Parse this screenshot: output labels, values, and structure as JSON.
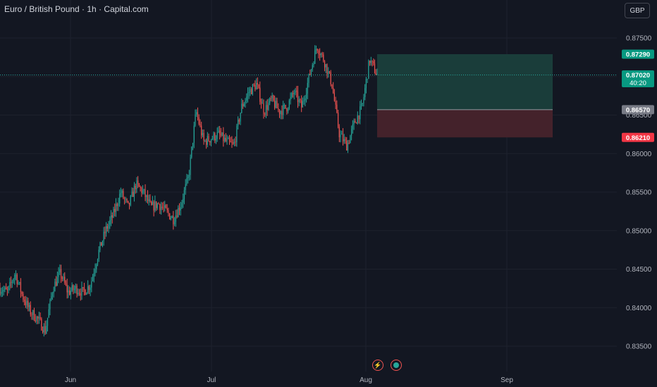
{
  "header": {
    "title": "Euro / British Pound · 1h · Capital.com",
    "currency_label": "GBP"
  },
  "colors": {
    "background": "#131722",
    "grid": "#1e222d",
    "up": "#26a69a",
    "down": "#ef5350",
    "target_zone": "#1a3d3a",
    "stop_zone": "#44222b",
    "current_price_line": "#26a69a",
    "entry_label": "#787b86"
  },
  "chart_data": {
    "type": "candlestick",
    "title": "Euro / British Pound · 1h · Capital.com",
    "ylim": [
      0.8325,
      0.8775
    ],
    "ytick_labels": [
      "0.83500",
      "0.84000",
      "0.84500",
      "0.85000",
      "0.85500",
      "0.86000",
      "0.86500",
      "0.87000",
      "0.87500"
    ],
    "xtick_labels": [
      "Jun",
      "Jul",
      "Aug",
      "Sep"
    ],
    "grid": true,
    "price_path": [
      {
        "t": "May 26",
        "p": 0.8425
      },
      {
        "t": "May 27",
        "p": 0.842
      },
      {
        "t": "May 28",
        "p": 0.8445
      },
      {
        "t": "May 29",
        "p": 0.8415
      },
      {
        "t": "May 30",
        "p": 0.8395
      },
      {
        "t": "Jun 2",
        "p": 0.8385
      },
      {
        "t": "Jun 3",
        "p": 0.837
      },
      {
        "t": "Jun 4",
        "p": 0.8425
      },
      {
        "t": "Jun 5",
        "p": 0.8445
      },
      {
        "t": "Jun 6",
        "p": 0.842
      },
      {
        "t": "Jun 9",
        "p": 0.8425
      },
      {
        "t": "Jun 10",
        "p": 0.842
      },
      {
        "t": "Jun 11",
        "p": 0.843
      },
      {
        "t": "Jun 12",
        "p": 0.847
      },
      {
        "t": "Jun 13",
        "p": 0.85
      },
      {
        "t": "Jun 16",
        "p": 0.852
      },
      {
        "t": "Jun 17",
        "p": 0.855
      },
      {
        "t": "Jun 18",
        "p": 0.853
      },
      {
        "t": "Jun 19",
        "p": 0.856
      },
      {
        "t": "Jun 20",
        "p": 0.855
      },
      {
        "t": "Jun 23",
        "p": 0.853
      },
      {
        "t": "Jun 24",
        "p": 0.8535
      },
      {
        "t": "Jun 25",
        "p": 0.8525
      },
      {
        "t": "Jun 26",
        "p": 0.8515
      },
      {
        "t": "Jun 27",
        "p": 0.8535
      },
      {
        "t": "Jun 30",
        "p": 0.857
      },
      {
        "t": "Jul 1",
        "p": 0.8655
      },
      {
        "t": "Jul 2",
        "p": 0.8615
      },
      {
        "t": "Jul 3",
        "p": 0.862
      },
      {
        "t": "Jul 4",
        "p": 0.8625
      },
      {
        "t": "Jul 7",
        "p": 0.8615
      },
      {
        "t": "Jul 8",
        "p": 0.861
      },
      {
        "t": "Jul 9",
        "p": 0.866
      },
      {
        "t": "Jul 10",
        "p": 0.868
      },
      {
        "t": "Jul 11",
        "p": 0.869
      },
      {
        "t": "Jul 14",
        "p": 0.8655
      },
      {
        "t": "Jul 15",
        "p": 0.867
      },
      {
        "t": "Jul 16",
        "p": 0.8655
      },
      {
        "t": "Jul 17",
        "p": 0.866
      },
      {
        "t": "Jul 18",
        "p": 0.868
      },
      {
        "t": "Jul 21",
        "p": 0.866
      },
      {
        "t": "Jul 22",
        "p": 0.87
      },
      {
        "t": "Jul 23",
        "p": 0.874
      },
      {
        "t": "Jul 24",
        "p": 0.872
      },
      {
        "t": "Jul 25",
        "p": 0.869
      },
      {
        "t": "Jul 28",
        "p": 0.8625
      },
      {
        "t": "Jul 29",
        "p": 0.861
      },
      {
        "t": "Jul 30",
        "p": 0.864
      },
      {
        "t": "Jul 31",
        "p": 0.866
      },
      {
        "t": "Aug 1",
        "p": 0.8722
      },
      {
        "t": "Aug 1 end",
        "p": 0.8702
      }
    ],
    "position": {
      "type": "long",
      "entry": 0.8657,
      "target": 0.8729,
      "stop": 0.8621
    },
    "price_labels": [
      {
        "text": "0.87290",
        "price": 0.8729,
        "color": "#089981"
      },
      {
        "text": "0.87020",
        "price": 0.8702,
        "color": "#089981",
        "sub": "40:20"
      },
      {
        "text": "0.86570",
        "price": 0.8657,
        "color": "#787b86"
      },
      {
        "text": "0.86210",
        "price": 0.8621,
        "color": "#f23645"
      }
    ],
    "current_price": 0.8702
  },
  "icons": {
    "events": [
      "lightning-icon",
      "dividend-icon"
    ]
  }
}
